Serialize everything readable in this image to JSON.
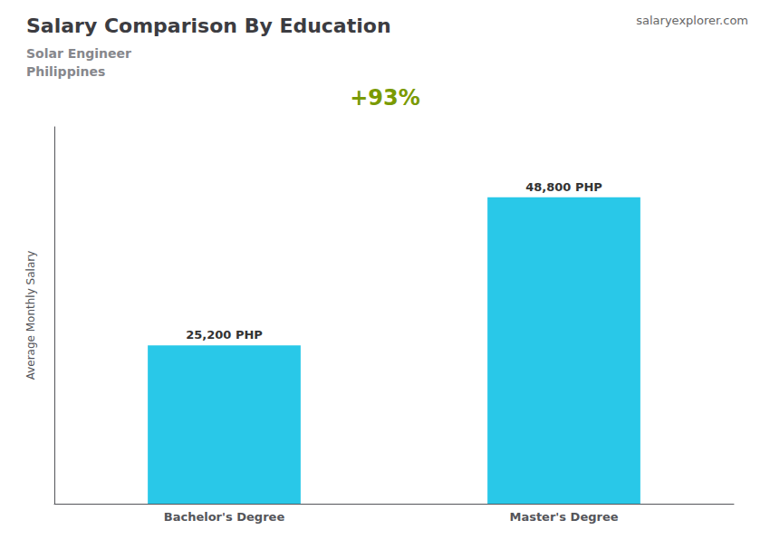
{
  "chart_data": {
    "type": "bar",
    "title": "Salary Comparison By Education",
    "subtitle": [
      "Solar Engineer",
      "Philippines"
    ],
    "ylabel": "Average Monthly Salary",
    "categories": [
      "Bachelor's Degree",
      "Master's Degree"
    ],
    "values": [
      25200,
      48800
    ],
    "value_labels": [
      "25,200 PHP",
      "48,800 PHP"
    ],
    "data_labels": true,
    "color": "#29C8E8",
    "annotations": [
      "+93%",
      "salaryexplorer.com"
    ],
    "ylim": [
      0,
      60000
    ],
    "tick_labels": "x",
    "grid": false
  }
}
